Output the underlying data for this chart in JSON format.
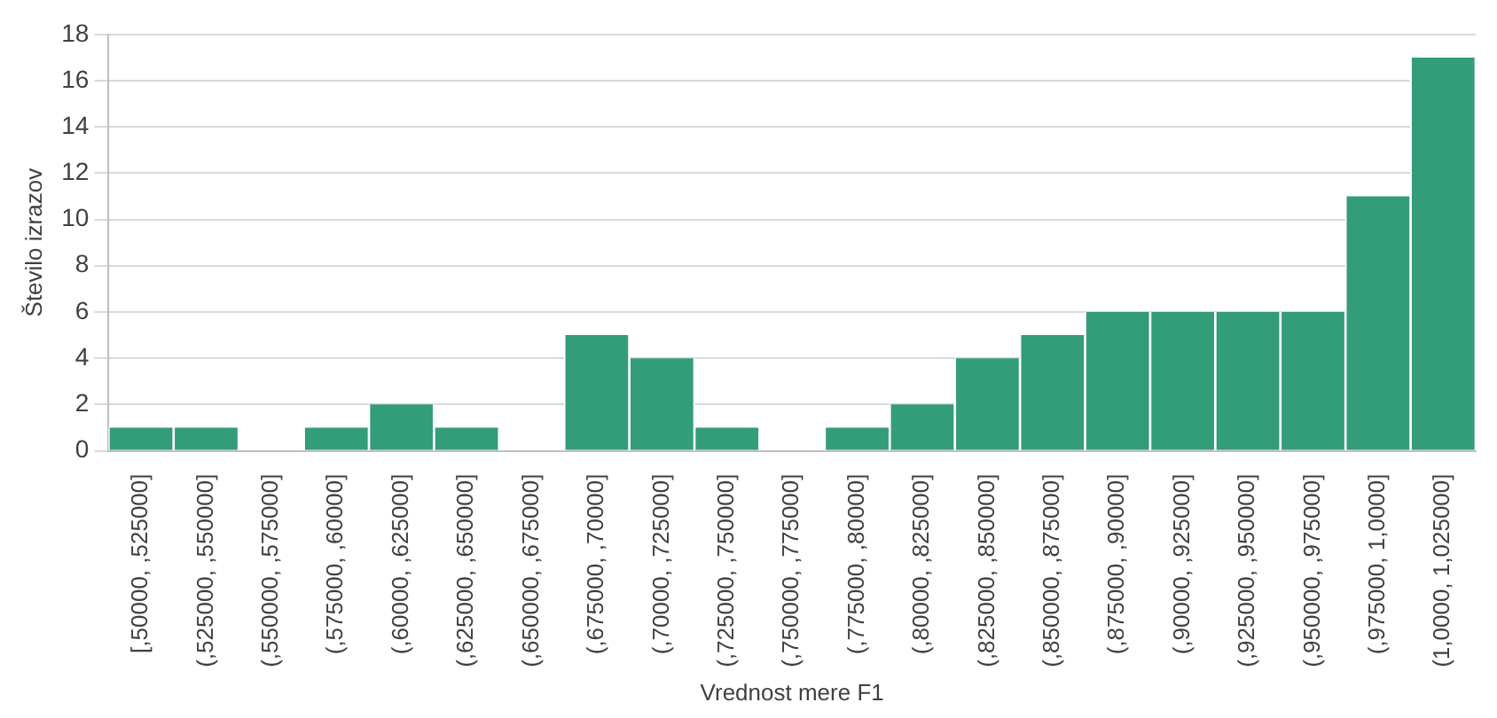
{
  "chart_data": {
    "type": "bar",
    "xlabel": "Vrednost mere F1",
    "ylabel": "Število izrazov",
    "categories": [
      "[,50000, ,525000]",
      "(,525000, ,550000]",
      "(,550000, ,575000]",
      "(,575000, ,60000]",
      "(,60000, ,625000]",
      "(,625000, ,650000]",
      "(,650000, ,675000]",
      "(,675000, ,70000]",
      "(,70000, ,725000]",
      "(,725000, ,750000]",
      "(,750000, ,775000]",
      "(,775000, ,80000]",
      "(,80000, ,825000]",
      "(,825000, ,850000]",
      "(,850000, ,875000]",
      "(,875000, ,90000]",
      "(,90000, ,925000]",
      "(,925000, ,950000]",
      "(,950000, ,975000]",
      "(,975000, 1,0000]",
      "(1,0000, 1,025000]"
    ],
    "values": [
      1,
      1,
      0,
      1,
      2,
      1,
      0,
      5,
      4,
      1,
      0,
      1,
      2,
      4,
      5,
      6,
      6,
      6,
      6,
      11,
      17
    ],
    "color": "#339c78",
    "ylim": [
      0,
      18
    ],
    "yticks": [
      0,
      2,
      4,
      6,
      8,
      10,
      12,
      14,
      16,
      18
    ],
    "grid": "y"
  }
}
